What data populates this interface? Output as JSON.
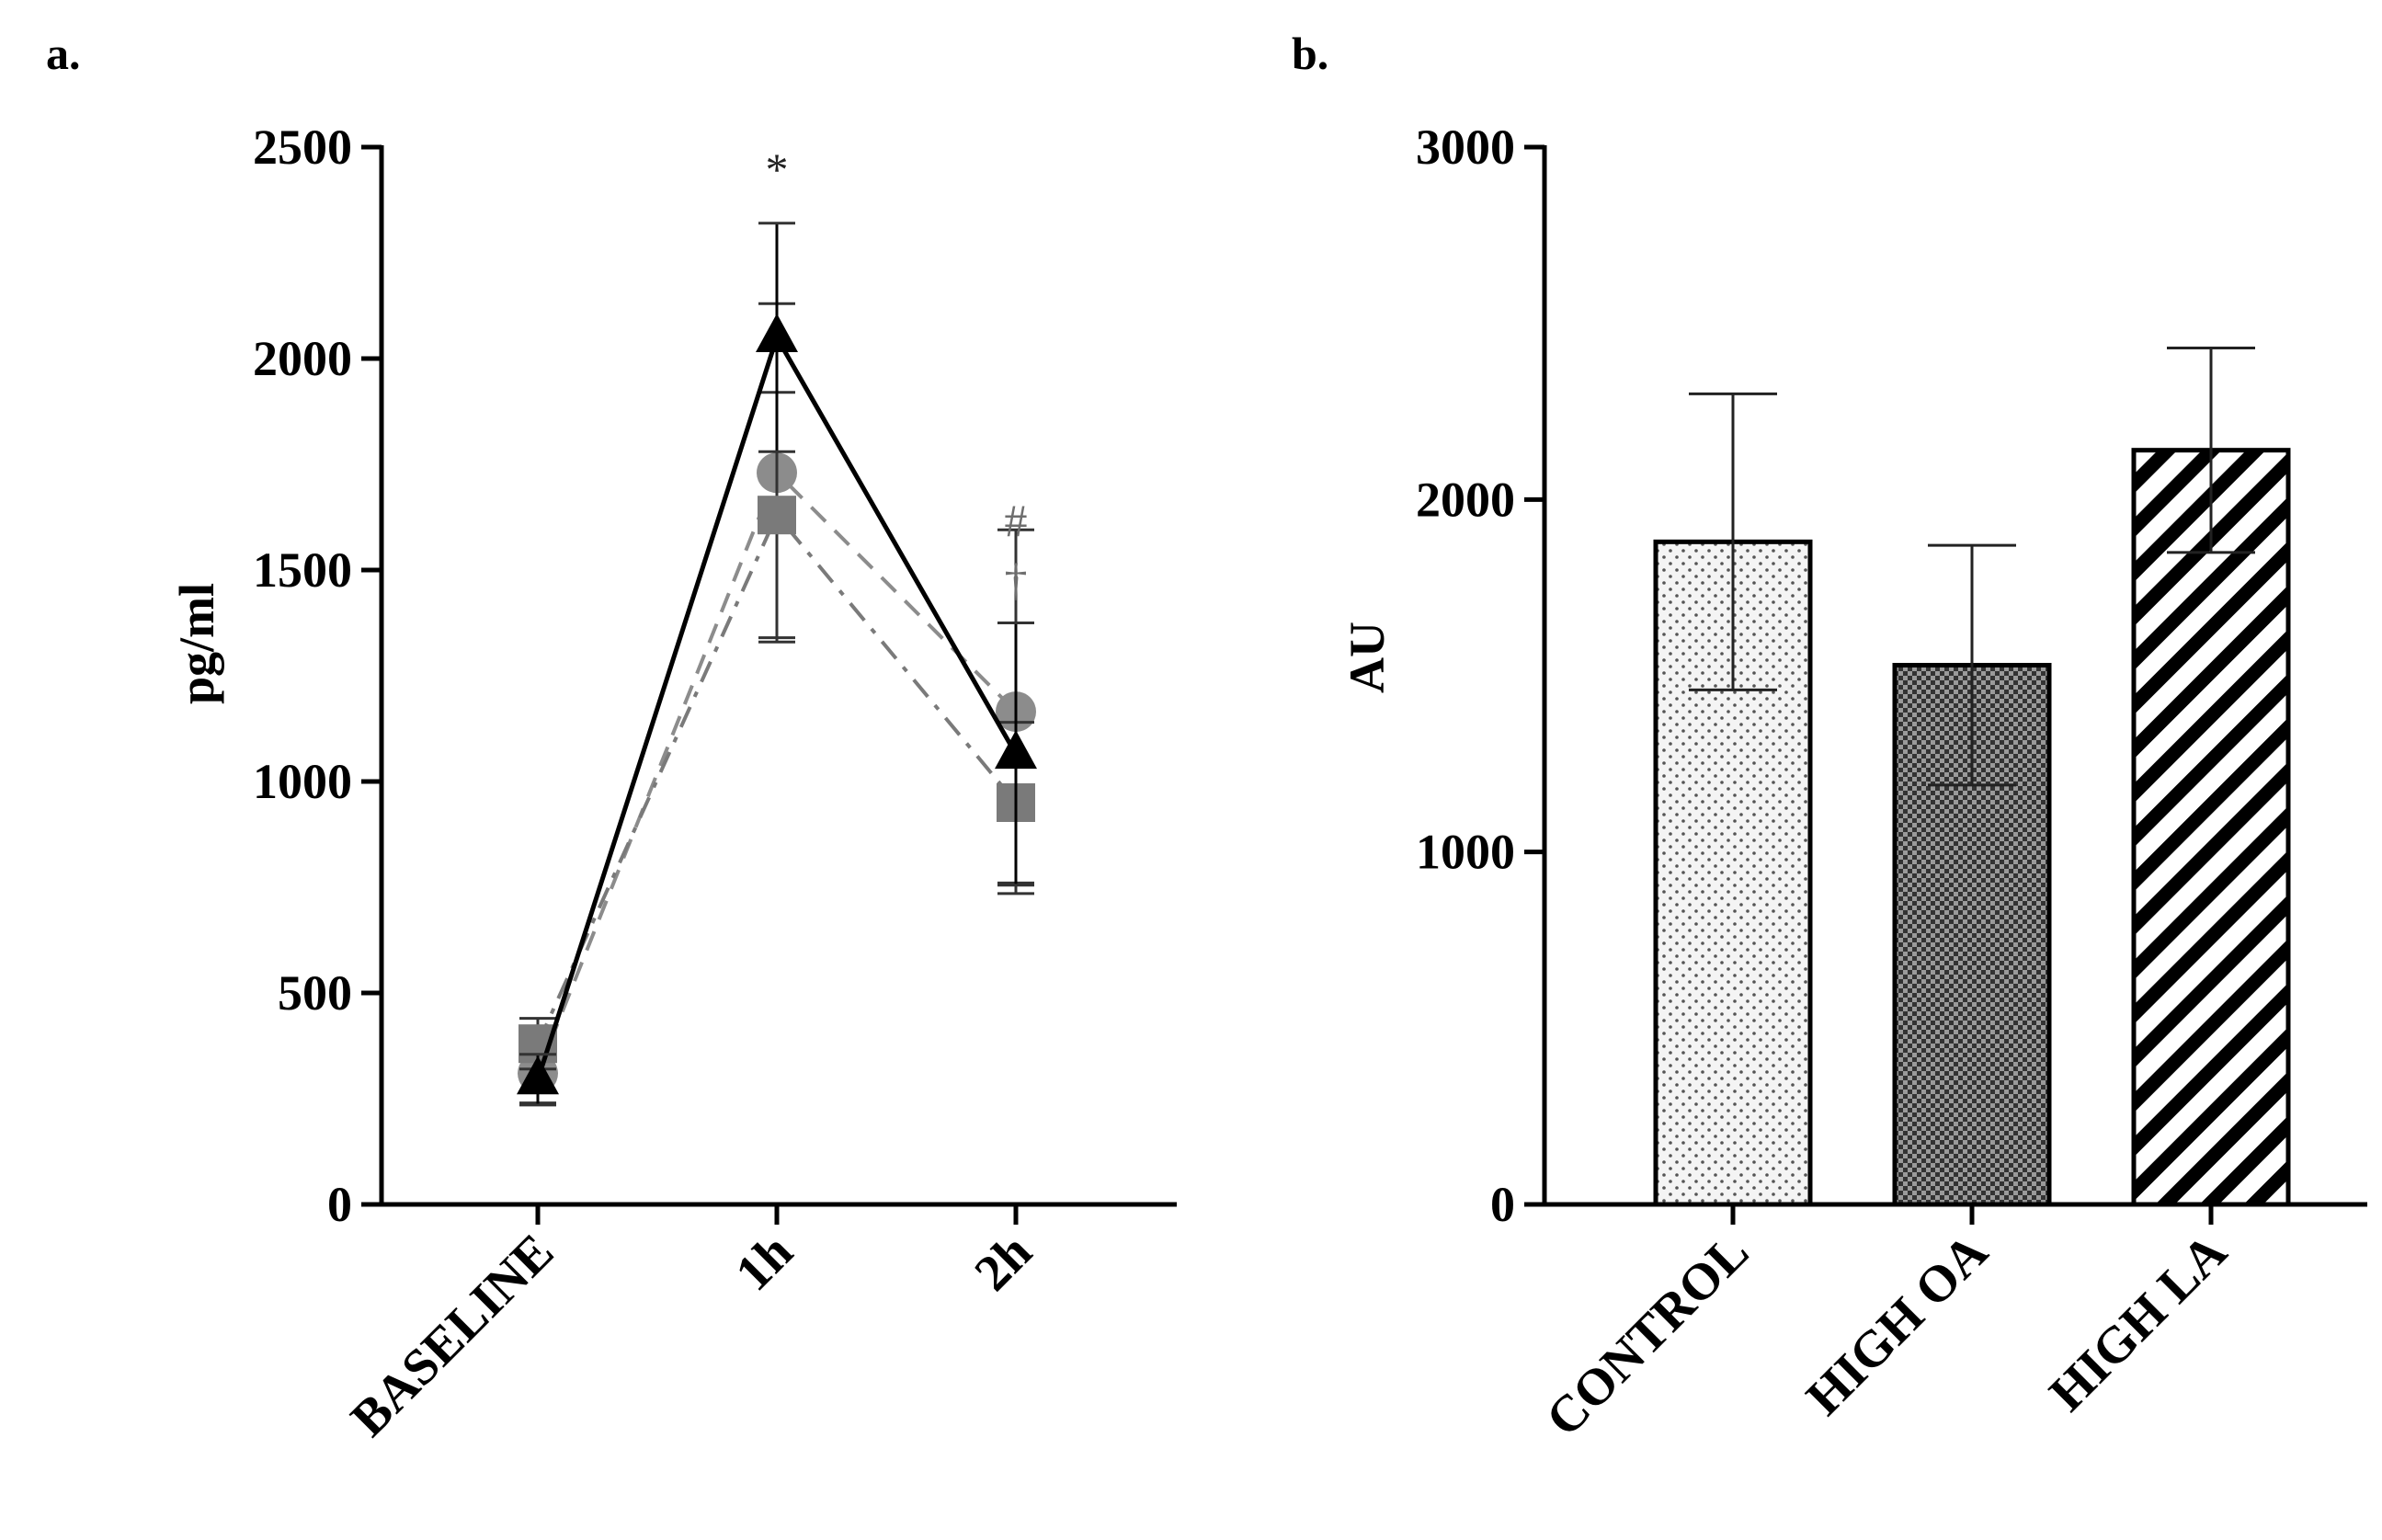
{
  "chart_data": [
    {
      "type": "line",
      "panel": "a.",
      "title": "",
      "xlabel": "",
      "ylabel": "pg/ml",
      "ylim": [
        0,
        2500
      ],
      "yticks": [
        "0",
        "500",
        "1000",
        "1500",
        "2000",
        "2500"
      ],
      "categories": [
        "BASELINE",
        "1h",
        "2h"
      ],
      "grid": false,
      "series": [
        {
          "marker": "circle",
          "line": "dashed",
          "color": "#8c8c8c",
          "values": [
            310,
            1730,
            1165
          ],
          "errors": [
            70,
            400,
            430
          ]
        },
        {
          "marker": "square",
          "line": "dash-dot",
          "color": "#7a7a7a",
          "values": [
            380,
            1630,
            950
          ],
          "errors": [
            60,
            290,
            190
          ]
        },
        {
          "marker": "triangle",
          "line": "solid",
          "color": "#000000",
          "values": [
            295,
            2050,
            1065
          ],
          "errors": [
            60,
            270,
            310
          ]
        }
      ],
      "annotations": [
        {
          "text": "*",
          "category": "1h",
          "y": 2450
        },
        {
          "text": "#",
          "category": "2h",
          "y": 1620
        },
        {
          "text": "†",
          "category": "2h",
          "y": 1480
        }
      ]
    },
    {
      "type": "bar",
      "panel": "b.",
      "title": "",
      "xlabel": "",
      "ylabel": "AU",
      "ylim": [
        0,
        3000
      ],
      "yticks": [
        "0",
        "1000",
        "2000",
        "3000"
      ],
      "categories": [
        "CONTROL",
        "HIGH OA",
        "HIGH LA"
      ],
      "grid": false,
      "values": [
        1880,
        1530,
        2140
      ],
      "errors": [
        420,
        340,
        290
      ],
      "patterns": [
        "dots",
        "checker",
        "diagonal-stripes"
      ]
    }
  ]
}
